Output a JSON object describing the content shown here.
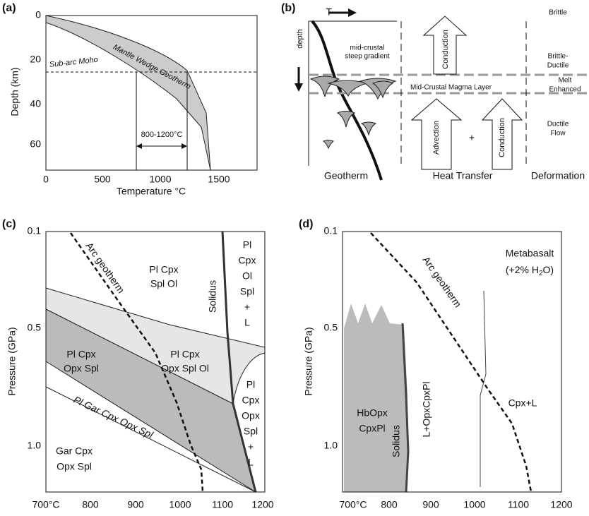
{
  "panels": [
    {
      "label": "(a)",
      "y_label": "Depth (km)",
      "x_label": "Temperature °C",
      "yticks": [
        "0",
        "20",
        "40",
        "60"
      ],
      "xticks": [
        "0",
        "500",
        "1000",
        "1500"
      ],
      "annotations": [
        "Sub-arc Moho",
        "Mantle Wedge Geotherm",
        "800-1200°C"
      ]
    },
    {
      "label": "(b)",
      "annotations": [
        "T",
        "depth",
        "mid-crustal",
        "steep gradient",
        "Mid-Crustal Magma Layer",
        "Conduction",
        "Advection",
        "+",
        "Conduction",
        "Geotherm",
        "Heat Transfer",
        "Deformation",
        "Brittle",
        "Brittle-",
        "Ductile",
        "Melt",
        "Enhanced",
        "Ductile",
        "Flow"
      ]
    },
    {
      "label": "(c)",
      "y_label": "Pressure (GPa)",
      "yticks": [
        "0.1",
        "0.5",
        "1.0"
      ],
      "xticks": [
        "700°C",
        "800",
        "900",
        "1000",
        "1100",
        "1200"
      ],
      "annotations": [
        "Arc geotherm",
        "Pl Cpx",
        "Spl Ol",
        "Solidus",
        "Pl",
        "Cpx",
        "Ol",
        "Spl",
        "+",
        "L",
        "Pl Cpx",
        "Opx Spl Ol",
        "Pl Cpx",
        "Opx Spl",
        "Pl Gar Cpx Opx Spl",
        "Gar Cpx",
        "Opx Spl",
        "Pl",
        "Cpx",
        "Opx",
        "Spl",
        "+",
        "L"
      ]
    },
    {
      "label": "(d)",
      "y_label": "Pressure (GPa)",
      "yticks": [
        "0.1",
        "0.5",
        "1.0"
      ],
      "xticks": [
        "700°C",
        "800",
        "900",
        "1000",
        "1100",
        "1200"
      ],
      "annotations": [
        "Metabasalt",
        "(+2% H",
        "2",
        "O)",
        "Arc geotherm",
        "HbOpx",
        "CpxPl",
        "Solidus",
        "L+OpxCpxPl",
        "Cpx+L"
      ]
    }
  ]
}
